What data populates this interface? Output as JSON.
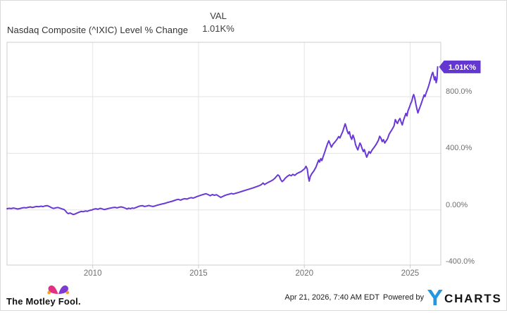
{
  "header": {
    "title": "Nasdaq Composite (^IXIC) Level % Change",
    "val_label": "VAL",
    "val_value": "1.01K%"
  },
  "badge": {
    "label": "1.01K%"
  },
  "colors": {
    "line": "#6938d6",
    "badge": "#6336d2",
    "grid": "#e4e4e4",
    "axis_border": "#cccccc",
    "tick_text": "#6f6f6f",
    "mf_pink": "#e2327f",
    "mf_purple": "#7d3bd4",
    "mf_orange": "#f6a21c",
    "ycharts_blue": "#2596e0",
    "ycharts_black": "#141414"
  },
  "footer": {
    "brand": "The Motley Fool.",
    "timestamp": "Apr 21, 2026, 7:40 AM EDT",
    "powered_by": "Powered by",
    "ycharts_text": "CHARTS"
  },
  "chart_data": {
    "type": "line",
    "title": "Nasdaq Composite (^IXIC) Level % Change",
    "xlabel": "",
    "ylabel": "Level % Change",
    "x_range": [
      2005.95,
      2026.45
    ],
    "y_range": [
      -390,
      1184
    ],
    "grid": true,
    "legend_position": "none",
    "last_value_label": "1.01K%",
    "last_value_pct": 1010,
    "x_ticks": [
      {
        "label": "2010",
        "value": 2010
      },
      {
        "label": "2015",
        "value": 2015
      },
      {
        "label": "2020",
        "value": 2020
      },
      {
        "label": "2025",
        "value": 2025
      }
    ],
    "y_ticks": [
      {
        "label": "800.0%",
        "value": 800
      },
      {
        "label": "400.0%",
        "value": 400
      },
      {
        "label": "0.00%",
        "value": 0
      },
      {
        "label": "-400.0%",
        "value": -400
      }
    ],
    "series": [
      {
        "name": "Nasdaq Composite (^IXIC) Level % Change",
        "points": [
          [
            2005.95,
            8
          ],
          [
            2006.05,
            11
          ],
          [
            2006.15,
            9
          ],
          [
            2006.25,
            13
          ],
          [
            2006.35,
            10
          ],
          [
            2006.45,
            6
          ],
          [
            2006.55,
            9
          ],
          [
            2006.65,
            13
          ],
          [
            2006.75,
            16
          ],
          [
            2006.85,
            14
          ],
          [
            2006.95,
            18
          ],
          [
            2007.05,
            21
          ],
          [
            2007.15,
            17
          ],
          [
            2007.25,
            21
          ],
          [
            2007.35,
            24
          ],
          [
            2007.45,
            22
          ],
          [
            2007.55,
            26
          ],
          [
            2007.65,
            23
          ],
          [
            2007.75,
            28
          ],
          [
            2007.85,
            30
          ],
          [
            2007.95,
            24
          ],
          [
            2008.05,
            15
          ],
          [
            2008.15,
            10
          ],
          [
            2008.25,
            14
          ],
          [
            2008.35,
            17
          ],
          [
            2008.45,
            12
          ],
          [
            2008.55,
            7
          ],
          [
            2008.65,
            2
          ],
          [
            2008.72,
            -8
          ],
          [
            2008.78,
            -20
          ],
          [
            2008.85,
            -27
          ],
          [
            2008.92,
            -22
          ],
          [
            2009.0,
            -27
          ],
          [
            2009.08,
            -33
          ],
          [
            2009.17,
            -29
          ],
          [
            2009.25,
            -23
          ],
          [
            2009.35,
            -17
          ],
          [
            2009.45,
            -11
          ],
          [
            2009.55,
            -13
          ],
          [
            2009.65,
            -8
          ],
          [
            2009.75,
            -10
          ],
          [
            2009.85,
            -4
          ],
          [
            2009.95,
            -1
          ],
          [
            2010.05,
            5
          ],
          [
            2010.15,
            8
          ],
          [
            2010.25,
            4
          ],
          [
            2010.35,
            11
          ],
          [
            2010.45,
            7
          ],
          [
            2010.55,
            2
          ],
          [
            2010.65,
            6
          ],
          [
            2010.75,
            10
          ],
          [
            2010.85,
            13
          ],
          [
            2010.95,
            16
          ],
          [
            2011.05,
            18
          ],
          [
            2011.15,
            14
          ],
          [
            2011.25,
            19
          ],
          [
            2011.35,
            21
          ],
          [
            2011.45,
            17
          ],
          [
            2011.55,
            11
          ],
          [
            2011.62,
            6
          ],
          [
            2011.7,
            12
          ],
          [
            2011.78,
            8
          ],
          [
            2011.85,
            13
          ],
          [
            2011.95,
            11
          ],
          [
            2012.05,
            17
          ],
          [
            2012.15,
            23
          ],
          [
            2012.25,
            28
          ],
          [
            2012.35,
            30
          ],
          [
            2012.45,
            24
          ],
          [
            2012.55,
            27
          ],
          [
            2012.65,
            31
          ],
          [
            2012.75,
            27
          ],
          [
            2012.85,
            24
          ],
          [
            2012.95,
            28
          ],
          [
            2013.05,
            33
          ],
          [
            2013.15,
            37
          ],
          [
            2013.25,
            41
          ],
          [
            2013.35,
            44
          ],
          [
            2013.45,
            48
          ],
          [
            2013.55,
            53
          ],
          [
            2013.65,
            57
          ],
          [
            2013.75,
            61
          ],
          [
            2013.85,
            66
          ],
          [
            2013.95,
            71
          ],
          [
            2014.05,
            74
          ],
          [
            2014.15,
            69
          ],
          [
            2014.25,
            75
          ],
          [
            2014.35,
            79
          ],
          [
            2014.45,
            76
          ],
          [
            2014.55,
            82
          ],
          [
            2014.65,
            86
          ],
          [
            2014.75,
            83
          ],
          [
            2014.85,
            89
          ],
          [
            2014.95,
            95
          ],
          [
            2015.05,
            100
          ],
          [
            2015.15,
            105
          ],
          [
            2015.25,
            110
          ],
          [
            2015.35,
            114
          ],
          [
            2015.45,
            108
          ],
          [
            2015.55,
            100
          ],
          [
            2015.65,
            108
          ],
          [
            2015.75,
            103
          ],
          [
            2015.85,
            107
          ],
          [
            2015.95,
            97
          ],
          [
            2016.05,
            88
          ],
          [
            2016.15,
            95
          ],
          [
            2016.25,
            102
          ],
          [
            2016.35,
            107
          ],
          [
            2016.45,
            111
          ],
          [
            2016.55,
            116
          ],
          [
            2016.65,
            112
          ],
          [
            2016.75,
            117
          ],
          [
            2016.85,
            121
          ],
          [
            2016.95,
            126
          ],
          [
            2017.1,
            133
          ],
          [
            2017.25,
            140
          ],
          [
            2017.4,
            147
          ],
          [
            2017.55,
            154
          ],
          [
            2017.7,
            162
          ],
          [
            2017.85,
            170
          ],
          [
            2017.95,
            177
          ],
          [
            2018.05,
            190
          ],
          [
            2018.12,
            179
          ],
          [
            2018.2,
            187
          ],
          [
            2018.3,
            195
          ],
          [
            2018.4,
            202
          ],
          [
            2018.5,
            210
          ],
          [
            2018.6,
            222
          ],
          [
            2018.68,
            236
          ],
          [
            2018.75,
            247
          ],
          [
            2018.82,
            238
          ],
          [
            2018.88,
            215
          ],
          [
            2018.95,
            200
          ],
          [
            2019.02,
            208
          ],
          [
            2019.1,
            224
          ],
          [
            2019.2,
            237
          ],
          [
            2019.3,
            247
          ],
          [
            2019.38,
            241
          ],
          [
            2019.45,
            251
          ],
          [
            2019.55,
            244
          ],
          [
            2019.65,
            257
          ],
          [
            2019.75,
            264
          ],
          [
            2019.85,
            271
          ],
          [
            2019.95,
            283
          ],
          [
            2020.02,
            292
          ],
          [
            2020.08,
            308
          ],
          [
            2020.14,
            288
          ],
          [
            2020.19,
            232
          ],
          [
            2020.23,
            203
          ],
          [
            2020.28,
            235
          ],
          [
            2020.35,
            255
          ],
          [
            2020.45,
            275
          ],
          [
            2020.55,
            302
          ],
          [
            2020.62,
            330
          ],
          [
            2020.68,
            352
          ],
          [
            2020.72,
            338
          ],
          [
            2020.78,
            362
          ],
          [
            2020.83,
            348
          ],
          [
            2020.9,
            380
          ],
          [
            2020.97,
            410
          ],
          [
            2021.03,
            438
          ],
          [
            2021.1,
            468
          ],
          [
            2021.16,
            488
          ],
          [
            2021.22,
            465
          ],
          [
            2021.28,
            443
          ],
          [
            2021.35,
            463
          ],
          [
            2021.45,
            480
          ],
          [
            2021.55,
            500
          ],
          [
            2021.62,
            518
          ],
          [
            2021.68,
            508
          ],
          [
            2021.75,
            532
          ],
          [
            2021.82,
            556
          ],
          [
            2021.88,
            585
          ],
          [
            2021.93,
            608
          ],
          [
            2021.97,
            590
          ],
          [
            2022.03,
            556
          ],
          [
            2022.08,
            538
          ],
          [
            2022.13,
            552
          ],
          [
            2022.18,
            518
          ],
          [
            2022.24,
            498
          ],
          [
            2022.3,
            528
          ],
          [
            2022.36,
            503
          ],
          [
            2022.42,
            462
          ],
          [
            2022.48,
            438
          ],
          [
            2022.53,
            424
          ],
          [
            2022.58,
            450
          ],
          [
            2022.63,
            472
          ],
          [
            2022.68,
            458
          ],
          [
            2022.74,
            430
          ],
          [
            2022.79,
            412
          ],
          [
            2022.84,
            426
          ],
          [
            2022.89,
            398
          ],
          [
            2022.95,
            372
          ],
          [
            2023.0,
            390
          ],
          [
            2023.06,
            412
          ],
          [
            2023.12,
            400
          ],
          [
            2023.2,
            422
          ],
          [
            2023.3,
            442
          ],
          [
            2023.4,
            464
          ],
          [
            2023.5,
            492
          ],
          [
            2023.56,
            520
          ],
          [
            2023.62,
            506
          ],
          [
            2023.68,
            482
          ],
          [
            2023.74,
            496
          ],
          [
            2023.8,
            472
          ],
          [
            2023.86,
            486
          ],
          [
            2023.93,
            502
          ],
          [
            2024.0,
            532
          ],
          [
            2024.06,
            548
          ],
          [
            2024.12,
            562
          ],
          [
            2024.18,
            577
          ],
          [
            2024.24,
            594
          ],
          [
            2024.3,
            638
          ],
          [
            2024.35,
            622
          ],
          [
            2024.4,
            610
          ],
          [
            2024.46,
            632
          ],
          [
            2024.52,
            646
          ],
          [
            2024.58,
            618
          ],
          [
            2024.63,
            600
          ],
          [
            2024.68,
            630
          ],
          [
            2024.74,
            656
          ],
          [
            2024.8,
            682
          ],
          [
            2024.85,
            664
          ],
          [
            2024.9,
            700
          ],
          [
            2024.96,
            722
          ],
          [
            2025.02,
            748
          ],
          [
            2025.08,
            768
          ],
          [
            2025.13,
            800
          ],
          [
            2025.17,
            815
          ],
          [
            2025.22,
            790
          ],
          [
            2025.27,
            748
          ],
          [
            2025.32,
            715
          ],
          [
            2025.37,
            685
          ],
          [
            2025.42,
            708
          ],
          [
            2025.48,
            732
          ],
          [
            2025.54,
            758
          ],
          [
            2025.6,
            785
          ],
          [
            2025.66,
            812
          ],
          [
            2025.7,
            800
          ],
          [
            2025.76,
            828
          ],
          [
            2025.82,
            852
          ],
          [
            2025.88,
            878
          ],
          [
            2025.93,
            905
          ],
          [
            2025.98,
            932
          ],
          [
            2026.03,
            958
          ],
          [
            2026.07,
            972
          ],
          [
            2026.11,
            948
          ],
          [
            2026.15,
            918
          ],
          [
            2026.19,
            940
          ],
          [
            2026.23,
            898
          ],
          [
            2026.27,
            925
          ],
          [
            2026.3,
            1010
          ]
        ]
      }
    ]
  }
}
